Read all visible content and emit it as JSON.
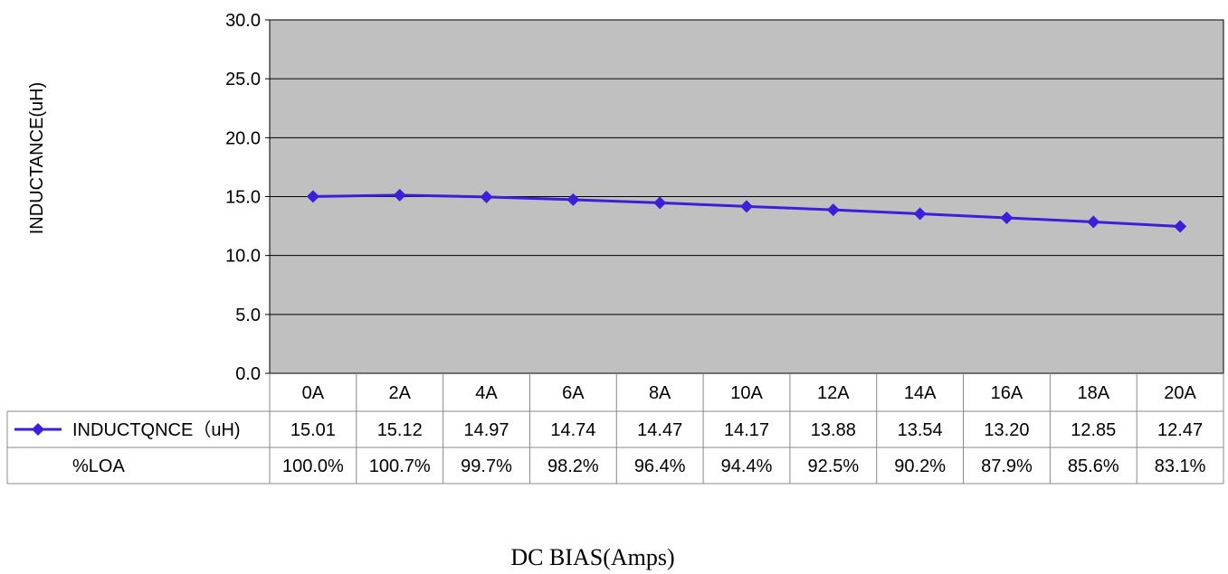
{
  "chart_data": {
    "type": "line",
    "ylabel": "INDUCTANCE(uH)",
    "xlabel": "DC BIAS(Amps)",
    "ylim": [
      0,
      30
    ],
    "yticks": [
      "0.0",
      "5.0",
      "10.0",
      "15.0",
      "20.0",
      "25.0",
      "30.0"
    ],
    "categories": [
      "0A",
      "2A",
      "4A",
      "6A",
      "8A",
      "10A",
      "12A",
      "14A",
      "16A",
      "18A",
      "20A"
    ],
    "series": [
      {
        "name": "INDUCTQNCE（uH)",
        "values": [
          15.01,
          15.12,
          14.97,
          14.74,
          14.47,
          14.17,
          13.88,
          13.54,
          13.2,
          12.85,
          12.47
        ],
        "labels": [
          "15.01",
          "15.12",
          "14.97",
          "14.74",
          "14.47",
          "14.17",
          "13.88",
          "13.54",
          "13.20",
          "12.85",
          "12.47"
        ],
        "color": "#3a1fdb"
      }
    ],
    "table_rows": [
      {
        "label": "%LOA",
        "values": [
          "100.0%",
          "100.7%",
          "99.7%",
          "98.2%",
          "96.4%",
          "94.4%",
          "92.5%",
          "90.2%",
          "87.9%",
          "85.6%",
          "83.1%"
        ]
      }
    ],
    "grid": true,
    "plot_background": "#c0c0c0",
    "legend": "data-table"
  }
}
